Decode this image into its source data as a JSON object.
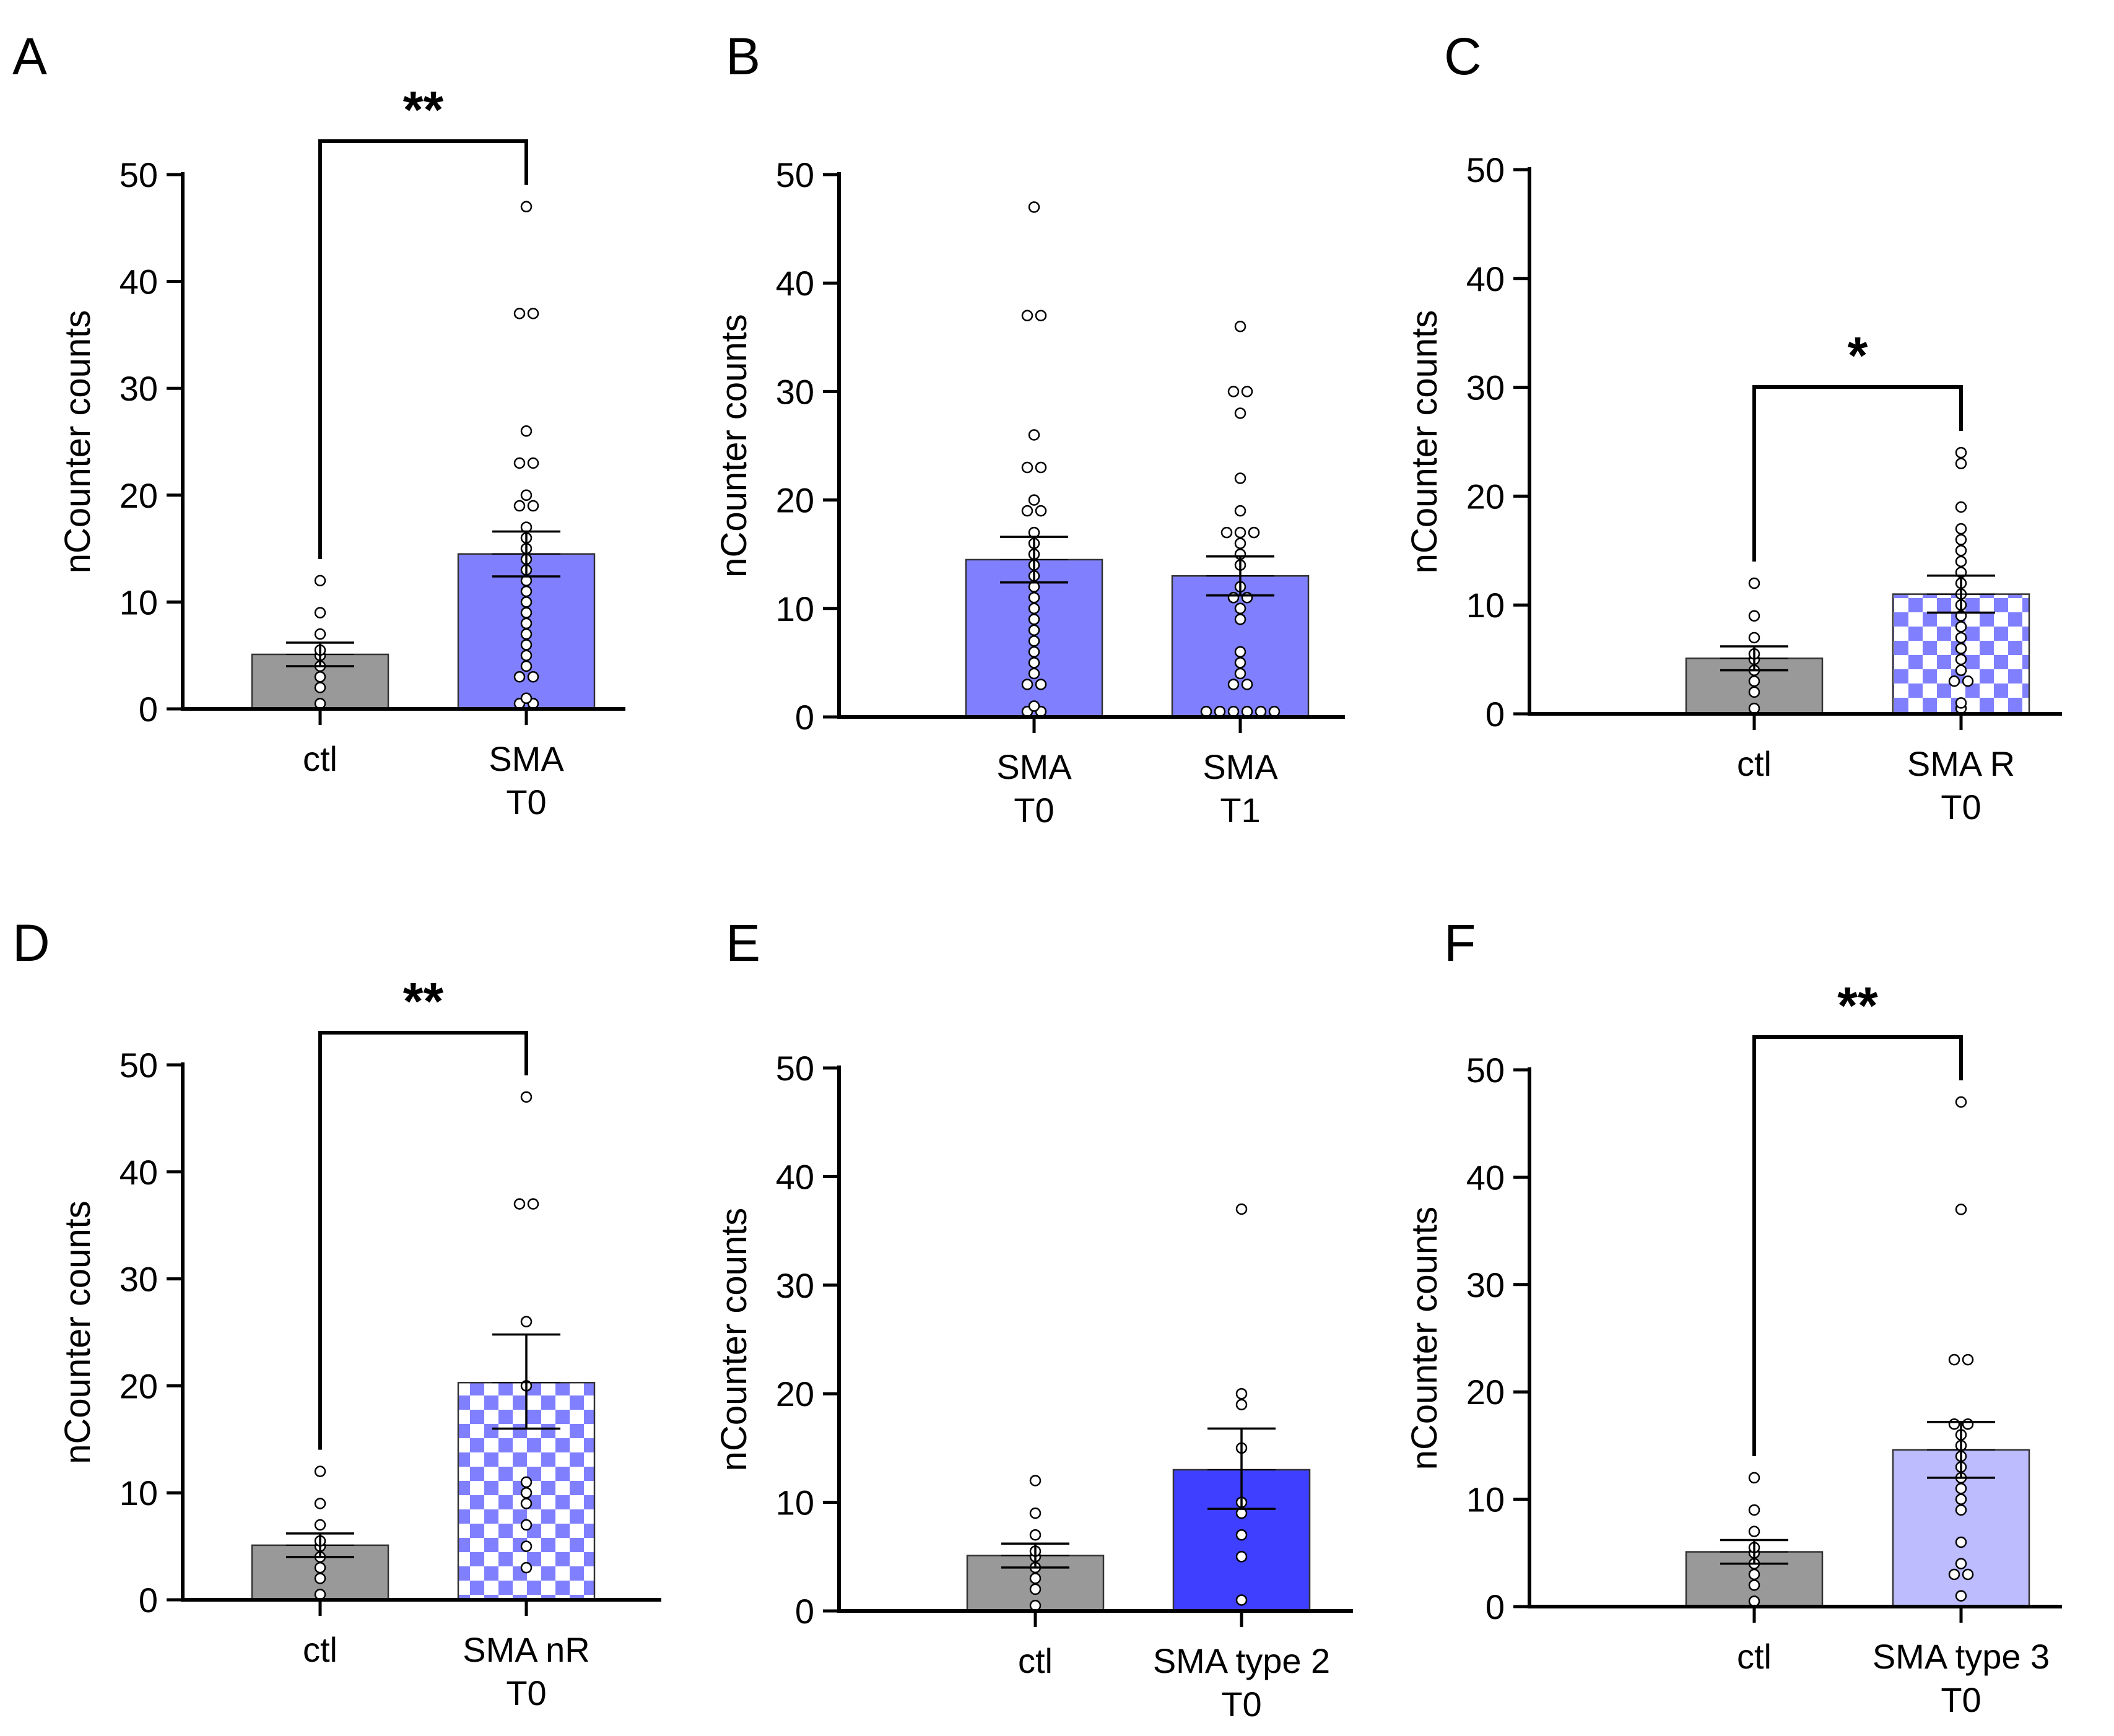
{
  "colors": {
    "ctl": "#999999",
    "sma_t0": "#8080ff",
    "sma_t1": "#8080ff",
    "checker": "#8080ff",
    "type2": "#3f3fff",
    "type3": "#bcbcff",
    "axis": "#000000",
    "point_fill": "#ffffff"
  },
  "chart_data": [
    {
      "panel": "A",
      "type": "bar",
      "ylabel": "nCounter counts",
      "ylim": [
        0,
        50
      ],
      "yticks": [
        0,
        10,
        20,
        30,
        40,
        50
      ],
      "categories": [
        "ctl",
        "SMA\nT0"
      ],
      "bars": [
        {
          "label": "ctl",
          "mean": 5.1,
          "sem_low": 4.0,
          "sem_high": 6.2,
          "fill": "solid",
          "color_key": "ctl",
          "points": [
            0.5,
            2,
            3,
            4,
            5,
            5.5,
            7,
            9,
            12
          ]
        },
        {
          "label": "SMA\nT0",
          "mean": 14.5,
          "sem_low": 12.4,
          "sem_high": 16.6,
          "fill": "solid",
          "color_key": "sma_t0",
          "points": [
            0.5,
            0.5,
            1,
            3,
            3,
            4,
            5,
            6,
            7,
            8,
            9,
            10,
            11,
            12,
            13,
            14,
            15,
            16,
            17,
            19,
            19,
            20,
            23,
            23,
            26,
            37,
            37,
            47
          ]
        }
      ],
      "significance": "**"
    },
    {
      "panel": "B",
      "type": "bar",
      "ylabel": "nCounter counts",
      "ylim": [
        0,
        50
      ],
      "yticks": [
        0,
        10,
        20,
        30,
        40,
        50
      ],
      "categories": [
        "SMA\nT0",
        "SMA\nT1"
      ],
      "bars": [
        {
          "label": "SMA\nT0",
          "mean": 14.5,
          "sem_low": 12.4,
          "sem_high": 16.6,
          "fill": "solid",
          "color_key": "sma_t0",
          "points": [
            0.5,
            0.5,
            1,
            3,
            3,
            4,
            5,
            6,
            7,
            8,
            9,
            10,
            11,
            12,
            13,
            14,
            15,
            16,
            17,
            19,
            19,
            20,
            23,
            23,
            26,
            37,
            37,
            47
          ]
        },
        {
          "label": "SMA\nT1",
          "mean": 13.0,
          "sem_low": 11.2,
          "sem_high": 14.8,
          "fill": "solid",
          "color_key": "sma_t1",
          "points": [
            0.5,
            0.5,
            0.5,
            0.5,
            0.5,
            0.5,
            3,
            3,
            4,
            5,
            6,
            9,
            10,
            11,
            11,
            12,
            14,
            15,
            16,
            17,
            17,
            17,
            19,
            22,
            28,
            30,
            30,
            36
          ]
        }
      ],
      "significance": ""
    },
    {
      "panel": "C",
      "type": "bar",
      "ylabel": "nCounter counts",
      "ylim": [
        0,
        50
      ],
      "yticks": [
        0,
        10,
        20,
        30,
        40,
        50
      ],
      "categories": [
        "ctl",
        "SMA R\nT0"
      ],
      "bars": [
        {
          "label": "ctl",
          "mean": 5.1,
          "sem_low": 4.0,
          "sem_high": 6.2,
          "fill": "solid",
          "color_key": "ctl",
          "points": [
            0.5,
            2,
            3,
            4,
            5,
            5.5,
            7,
            9,
            12
          ]
        },
        {
          "label": "SMA R\nT0",
          "mean": 11.0,
          "sem_low": 9.3,
          "sem_high": 12.7,
          "fill": "checker",
          "color_key": "checker",
          "points": [
            0.5,
            1,
            3,
            3,
            4,
            5,
            6,
            7,
            8,
            9,
            10,
            11,
            12,
            13,
            14,
            15,
            16,
            17,
            19,
            23,
            24
          ]
        }
      ],
      "significance": "*"
    },
    {
      "panel": "D",
      "type": "bar",
      "ylabel": "nCounter counts",
      "ylim": [
        0,
        50
      ],
      "yticks": [
        0,
        10,
        20,
        30,
        40,
        50
      ],
      "categories": [
        "ctl",
        "SMA nR\nT0"
      ],
      "bars": [
        {
          "label": "ctl",
          "mean": 5.1,
          "sem_low": 4.0,
          "sem_high": 6.2,
          "fill": "solid",
          "color_key": "ctl",
          "points": [
            0.5,
            2,
            3,
            4,
            5,
            5.5,
            7,
            9,
            12
          ]
        },
        {
          "label": "SMA nR\nT0",
          "mean": 20.3,
          "sem_low": 16.0,
          "sem_high": 24.8,
          "fill": "checker",
          "color_key": "checker",
          "points": [
            3,
            5,
            7,
            9,
            10,
            11,
            20,
            26,
            37,
            37,
            47
          ]
        }
      ],
      "significance": "**"
    },
    {
      "panel": "E",
      "type": "bar",
      "ylabel": "nCounter counts",
      "ylim": [
        0,
        50
      ],
      "yticks": [
        0,
        10,
        20,
        30,
        40,
        50
      ],
      "categories": [
        "ctl",
        "SMA type 2\nT0"
      ],
      "bars": [
        {
          "label": "ctl",
          "mean": 5.1,
          "sem_low": 4.0,
          "sem_high": 6.2,
          "fill": "solid",
          "color_key": "ctl",
          "points": [
            0.5,
            2,
            3,
            4,
            5,
            5.5,
            7,
            9,
            12
          ]
        },
        {
          "label": "SMA type 2\nT0",
          "mean": 13.0,
          "sem_low": 9.4,
          "sem_high": 16.8,
          "fill": "solid",
          "color_key": "type2",
          "points": [
            1,
            5,
            7,
            9,
            10,
            15,
            19,
            20,
            37
          ]
        }
      ],
      "significance": ""
    },
    {
      "panel": "F",
      "type": "bar",
      "ylabel": "nCounter counts",
      "ylim": [
        0,
        50
      ],
      "yticks": [
        0,
        10,
        20,
        30,
        40,
        50
      ],
      "categories": [
        "ctl",
        "SMA type 3\nT0"
      ],
      "bars": [
        {
          "label": "ctl",
          "mean": 5.1,
          "sem_low": 4.0,
          "sem_high": 6.2,
          "fill": "solid",
          "color_key": "ctl",
          "points": [
            0.5,
            2,
            3,
            4,
            5,
            5.5,
            7,
            9,
            12
          ]
        },
        {
          "label": "SMA type 3\nT0",
          "mean": 14.6,
          "sem_low": 12.0,
          "sem_high": 17.2,
          "fill": "solid",
          "color_key": "type3",
          "points": [
            1,
            3,
            3,
            4,
            6,
            9,
            10,
            11,
            12,
            13,
            14,
            15,
            16,
            17,
            17,
            23,
            23,
            37,
            47
          ]
        }
      ],
      "significance": "**"
    }
  ]
}
